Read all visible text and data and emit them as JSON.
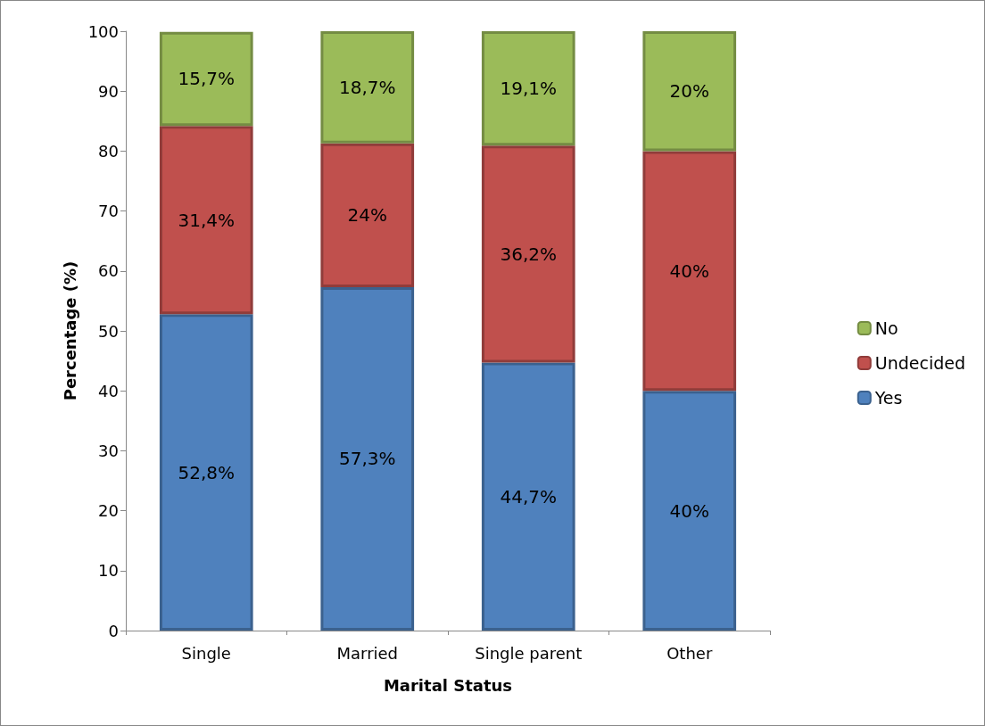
{
  "chart_data": {
    "type": "bar",
    "xlabel": "Marital Status",
    "ylabel": "Percentage (%)",
    "categories": [
      "Single",
      "Married",
      "Single parent",
      "Other"
    ],
    "stacked": true,
    "ylim": [
      0,
      100
    ],
    "yticks": [
      0,
      10,
      20,
      30,
      40,
      50,
      60,
      70,
      80,
      90,
      100
    ],
    "grid": false,
    "legend": "right",
    "series": [
      {
        "name": "Yes",
        "color": "#4f81bd",
        "values": [
          52.8,
          57.3,
          44.7,
          40
        ],
        "value_labels": [
          "52,8%",
          "57,3%",
          "44,7%",
          "40%"
        ]
      },
      {
        "name": "Undecided",
        "color": "#c0504d",
        "values": [
          31.4,
          24,
          36.2,
          40
        ],
        "value_labels": [
          "31,4%",
          "24%",
          "36,2%",
          "40%"
        ]
      },
      {
        "name": "No",
        "color": "#9bbb59",
        "values": [
          15.7,
          18.7,
          19.1,
          20
        ],
        "value_labels": [
          "15,7%",
          "18,7%",
          "19,1%",
          "20%"
        ]
      }
    ]
  }
}
